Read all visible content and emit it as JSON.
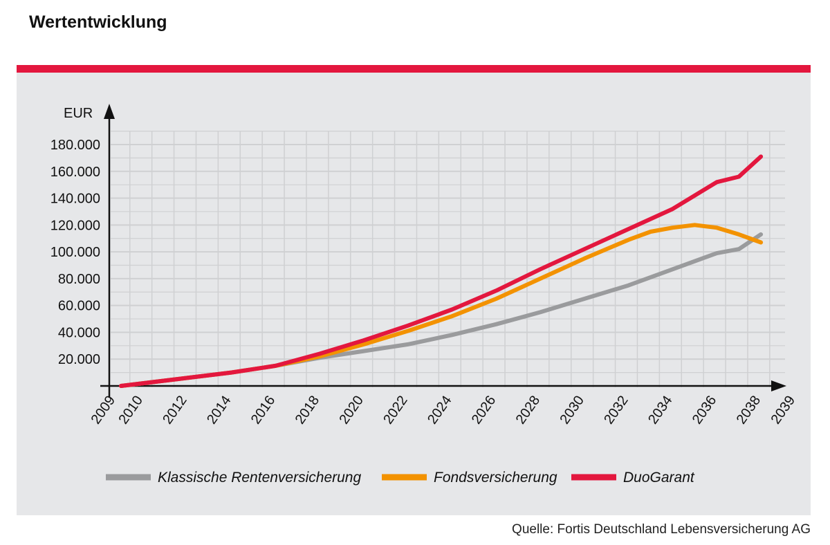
{
  "title": "Wertentwicklung",
  "source": "Quelle: Fortis Deutschland Lebensversicherung AG",
  "chart_data": {
    "type": "line",
    "ylabel": "EUR",
    "ylim": [
      0,
      180000
    ],
    "xlim": [
      2009,
      2039
    ],
    "grid": true,
    "legend_placement": "bottom",
    "y_ticks": [
      "20.000",
      "40.000",
      "60.000",
      "80.000",
      "100.000",
      "120.000",
      "140.000",
      "160.000",
      "180.000"
    ],
    "y_tick_values": [
      20000,
      40000,
      60000,
      80000,
      100000,
      120000,
      140000,
      160000,
      180000
    ],
    "x_ticks": [
      "2009",
      "2010",
      "2012",
      "2014",
      "2016",
      "2018",
      "2020",
      "2022",
      "2024",
      "2026",
      "2028",
      "2030",
      "2032",
      "2034",
      "2036",
      "2038",
      "2039"
    ],
    "series": [
      {
        "name": "Klassische Rentenversicherung",
        "color": "#9a9b9d",
        "x": [
          2009,
          2012,
          2014,
          2016,
          2018,
          2020,
          2022,
          2024,
          2026,
          2028,
          2030,
          2032,
          2034,
          2036,
          2037,
          2038
        ],
        "y": [
          0,
          6000,
          10000,
          15000,
          21000,
          26000,
          31000,
          38000,
          46000,
          55000,
          65000,
          75000,
          87000,
          99000,
          102000,
          113000
        ]
      },
      {
        "name": "Fondsversicherung",
        "color": "#f39200",
        "x": [
          2009,
          2012,
          2014,
          2016,
          2018,
          2020,
          2022,
          2024,
          2026,
          2028,
          2030,
          2032,
          2033,
          2034,
          2035,
          2036,
          2037,
          2038
        ],
        "y": [
          0,
          6000,
          10000,
          15000,
          22000,
          31000,
          41000,
          52000,
          65000,
          80000,
          95000,
          109000,
          115000,
          118000,
          120000,
          118000,
          113000,
          107000
        ]
      },
      {
        "name": "DuoGarant",
        "color": "#e3173e",
        "x": [
          2009,
          2012,
          2014,
          2016,
          2018,
          2020,
          2022,
          2024,
          2026,
          2028,
          2030,
          2032,
          2034,
          2035,
          2036,
          2037,
          2038
        ],
        "y": [
          0,
          6000,
          10000,
          15000,
          24000,
          34000,
          45000,
          57000,
          71000,
          87000,
          102000,
          117000,
          132000,
          142000,
          152000,
          156000,
          171000
        ]
      }
    ]
  }
}
